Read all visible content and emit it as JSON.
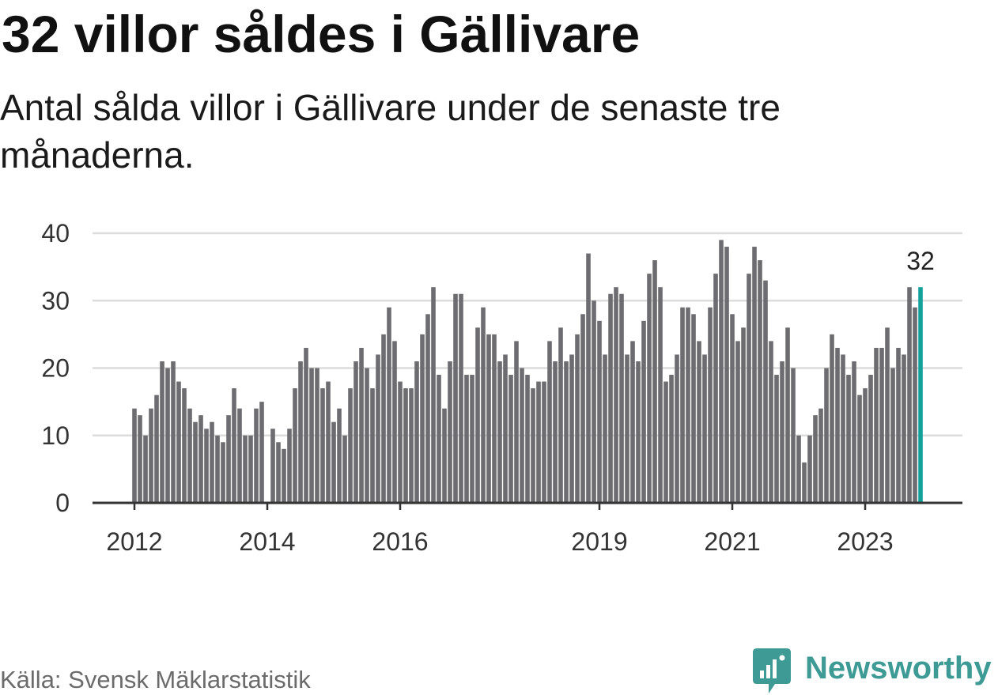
{
  "colors": {
    "bar": "#6d6d71",
    "highlight": "#14a19a",
    "grid": "#dcdcdc",
    "axis": "#333333",
    "tick_text": "#333333",
    "brand": "#3d9a95"
  },
  "footer": {
    "source": "Källa: Svensk Mäklarstatistik",
    "brand": "Newsworthy",
    "brand_icon": "newsworthy-logo-icon"
  },
  "chart_data": {
    "type": "bar",
    "title": "32 villor såldes i Gällivare",
    "subtitle": "Antal sålda villor i Gällivare under de senaste tre månaderna.",
    "xlabel": "",
    "ylabel": "",
    "start_year": 2012,
    "start_month": 1,
    "values": [
      14,
      13,
      10,
      14,
      16,
      21,
      20,
      21,
      18,
      17,
      14,
      12,
      13,
      11,
      12,
      10,
      9,
      13,
      17,
      14,
      10,
      10,
      14,
      15,
      null,
      11,
      9,
      8,
      11,
      17,
      21,
      23,
      20,
      20,
      17,
      18,
      12,
      14,
      10,
      17,
      21,
      23,
      20,
      17,
      22,
      25,
      29,
      24,
      18,
      17,
      17,
      21,
      25,
      28,
      32,
      19,
      14,
      21,
      31,
      31,
      19,
      19,
      26,
      29,
      25,
      25,
      21,
      22,
      19,
      24,
      20,
      19,
      17,
      18,
      18,
      24,
      21,
      26,
      21,
      22,
      25,
      28,
      37,
      30,
      27,
      22,
      31,
      32,
      31,
      22,
      24,
      21,
      27,
      34,
      36,
      32,
      18,
      19,
      22,
      29,
      29,
      28,
      24,
      22,
      29,
      34,
      39,
      38,
      28,
      24,
      26,
      34,
      38,
      36,
      33,
      24,
      19,
      21,
      26,
      20,
      10,
      6,
      10,
      13,
      14,
      20,
      25,
      23,
      22,
      19,
      21,
      16,
      17,
      19,
      23,
      23,
      26,
      20,
      23,
      22,
      32,
      29,
      32
    ],
    "highlight": {
      "index": 142
    },
    "x_ticks": [
      2012,
      2014,
      2016,
      2019,
      2021,
      2023
    ],
    "y_ticks": [
      0,
      10,
      20,
      30,
      40
    ],
    "xlim": [
      2011.369,
      2024.464
    ],
    "ylim": [
      0,
      40
    ],
    "grid": true
  }
}
